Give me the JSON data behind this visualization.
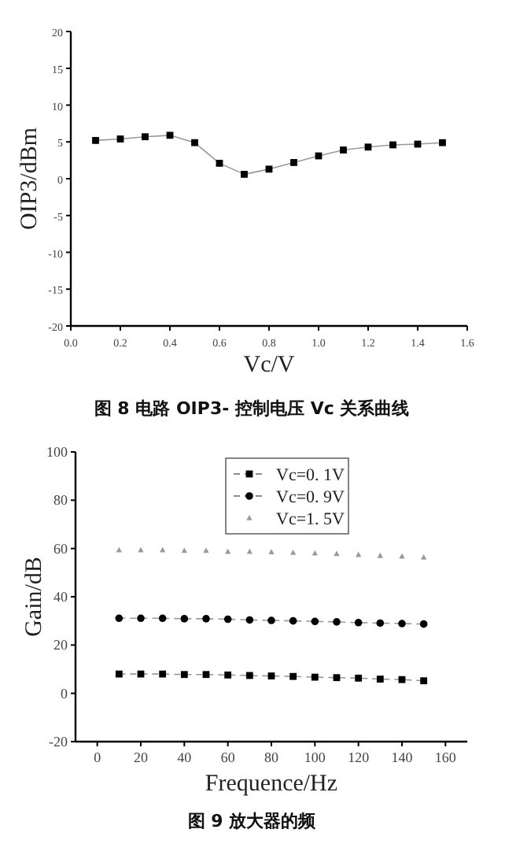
{
  "chart_data": [
    {
      "type": "line",
      "title": "图 8 电路 OIP3- 控制电压 Vc 关系曲线",
      "xlabel": "Vc/V",
      "ylabel": "OIP3/dBm",
      "x": [
        0.1,
        0.2,
        0.3,
        0.4,
        0.5,
        0.6,
        0.7,
        0.8,
        0.9,
        1.0,
        1.1,
        1.2,
        1.3,
        1.4,
        1.5
      ],
      "series": [
        {
          "color": "#000000",
          "values": [
            5.2,
            5.4,
            5.7,
            5.9,
            4.9,
            2.1,
            0.6,
            1.3,
            2.2,
            3.1,
            3.9,
            4.3,
            4.6,
            4.7,
            4.9
          ]
        }
      ],
      "xlim": [
        0,
        1.6
      ],
      "xticks": [
        {
          "value": 0,
          "label": "0.0"
        },
        0.2,
        0.4,
        0.6,
        0.8,
        {
          "value": 1,
          "label": "1.0"
        },
        1.2,
        1.4,
        1.6
      ],
      "ylim": [
        -20,
        20
      ],
      "yticks": [
        -20,
        -15,
        -10,
        -5,
        0,
        5,
        10,
        15,
        20
      ],
      "marker": "square",
      "line_style": "solid",
      "grid": false,
      "legend": false
    },
    {
      "type": "line",
      "title": "图 9 放大器的频",
      "xlabel": "Frequence/Hz",
      "ylabel": "Gain/dB",
      "x": [
        10,
        20,
        30,
        40,
        50,
        60,
        70,
        80,
        90,
        100,
        110,
        120,
        130,
        140,
        150
      ],
      "series": [
        {
          "name": "Vc=0. 1V",
          "color": "#000000",
          "marker": "square",
          "values": [
            8.0,
            8.0,
            8.0,
            7.8,
            7.8,
            7.6,
            7.4,
            7.2,
            7.0,
            6.7,
            6.5,
            6.3,
            5.9,
            5.7,
            5.2
          ]
        },
        {
          "name": "Vc=0. 9V",
          "color": "#000000",
          "marker": "circle",
          "values": [
            31.1,
            31.1,
            31.1,
            30.9,
            30.9,
            30.7,
            30.4,
            30.2,
            30.0,
            29.8,
            29.6,
            29.3,
            29.1,
            28.9,
            28.7
          ]
        },
        {
          "name": "Vc=1. 5V",
          "color": "#999999",
          "type": "scatter",
          "marker": "triangle",
          "values": [
            59.3,
            59.3,
            59.3,
            59.1,
            59.1,
            58.7,
            58.7,
            58.5,
            58.3,
            58.0,
            57.8,
            57.4,
            57.0,
            56.7,
            56.3
          ]
        }
      ],
      "xlim": [
        -10,
        170
      ],
      "xticks": [
        0,
        20,
        40,
        60,
        80,
        100,
        120,
        140,
        160
      ],
      "ylim": [
        -20,
        100
      ],
      "yticks": [
        -20,
        0,
        20,
        40,
        60,
        80,
        100
      ],
      "line_style": "dashed",
      "grid": false,
      "legend": "top"
    }
  ]
}
